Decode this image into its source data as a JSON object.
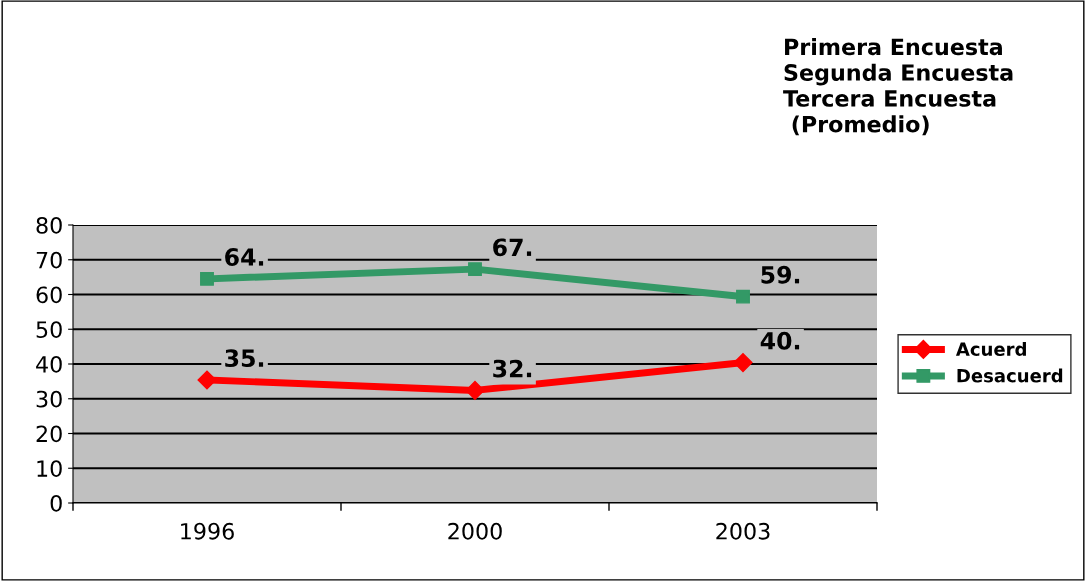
{
  "chart_data": {
    "type": "line",
    "title": "Primera Encuesta\nSegunda Encuesta\nTercera Encuesta\n (Promedio)",
    "categories": [
      "1996",
      "2000",
      "2003"
    ],
    "series": [
      {
        "name": "Acuerd",
        "color": "#ff0000",
        "marker": "diamond",
        "values": [
          35.4,
          32.4,
          40.4
        ],
        "value_labels": [
          "35.",
          "32.",
          "40."
        ]
      },
      {
        "name": "Desacuerd",
        "color": "#339966",
        "marker": "square",
        "values": [
          64.5,
          67.3,
          59.4
        ],
        "value_labels": [
          "64.",
          "67.",
          "59."
        ]
      }
    ],
    "ylim": [
      0,
      80
    ],
    "yticks": [
      0,
      10,
      20,
      30,
      40,
      50,
      60,
      70,
      80
    ],
    "grid": "y",
    "legend": "right",
    "line_style": "solid"
  }
}
